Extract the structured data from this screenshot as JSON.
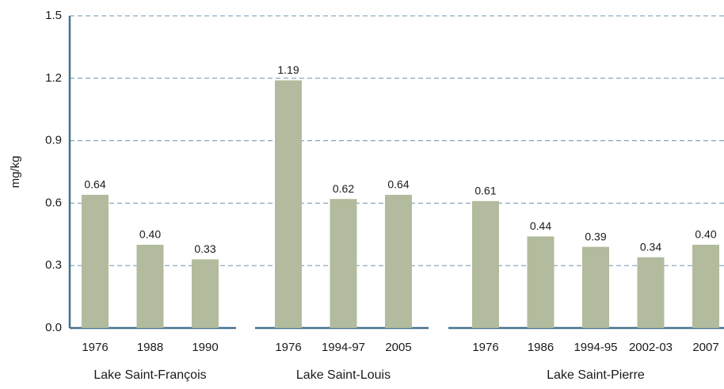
{
  "chart_data": {
    "type": "bar",
    "ylabel": "mg/kg",
    "color": "#b2bb9d",
    "ylim": [
      0,
      1.5
    ],
    "yticks": [
      {
        "value": 0,
        "label": "0.0"
      },
      0.3,
      0.6,
      0.9,
      1.2,
      1.5
    ],
    "grid": true,
    "groups": [
      {
        "name": "Lake Saint-François",
        "categories": [
          "1976",
          "1988",
          "1990"
        ],
        "values": [
          0.64,
          0.4,
          0.33
        ],
        "value_labels": [
          "0.64",
          "0.40",
          "0.33"
        ]
      },
      {
        "name": "Lake Saint-Louis",
        "categories": [
          "1976",
          "1994-97",
          "2005"
        ],
        "values": [
          1.19,
          0.62,
          0.64
        ],
        "value_labels": [
          "1.19",
          "0.62",
          "0.64"
        ]
      },
      {
        "name": "Lake Saint-Pierre",
        "categories": [
          "1976",
          "1986",
          "1994-95",
          "2002-03",
          "2007"
        ],
        "values": [
          0.61,
          0.44,
          0.39,
          0.34,
          0.4
        ],
        "value_labels": [
          "0.61",
          "0.44",
          "0.39",
          "0.34",
          "0.40"
        ]
      }
    ]
  }
}
